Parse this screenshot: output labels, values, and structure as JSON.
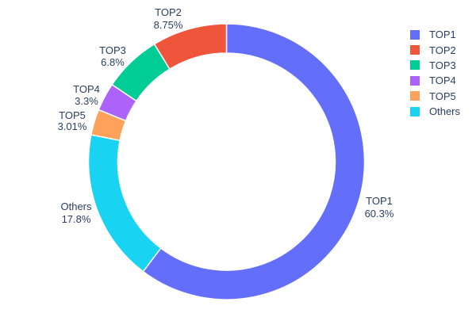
{
  "chart_data": {
    "type": "pie",
    "subtype": "donut",
    "title": "",
    "background_color": "#ffffff",
    "text_color": "#2a3f5f",
    "hole_ratio": 0.79,
    "slices": [
      {
        "label": "TOP1",
        "value": 60.3,
        "pct_text": "60.3%",
        "color": "#636EFA"
      },
      {
        "label": "TOP2",
        "value": 8.75,
        "pct_text": "8.75%",
        "color": "#EF553B"
      },
      {
        "label": "TOP3",
        "value": 6.8,
        "pct_text": "6.8%",
        "color": "#00CC96"
      },
      {
        "label": "TOP4",
        "value": 3.3,
        "pct_text": "3.3%",
        "color": "#AB63FA"
      },
      {
        "label": "TOP5",
        "value": 3.01,
        "pct_text": "3.01%",
        "color": "#FFA15A"
      },
      {
        "label": "Others",
        "value": 17.8,
        "pct_text": "17.8%",
        "color": "#19D3F3"
      }
    ],
    "clockwise_order_from_top": [
      "TOP1",
      "Others",
      "TOP5",
      "TOP4",
      "TOP3",
      "TOP2"
    ],
    "labels_position": "outside",
    "legend": {
      "position": "right",
      "items": [
        "TOP1",
        "TOP2",
        "TOP3",
        "TOP4",
        "TOP5",
        "Others"
      ]
    }
  }
}
